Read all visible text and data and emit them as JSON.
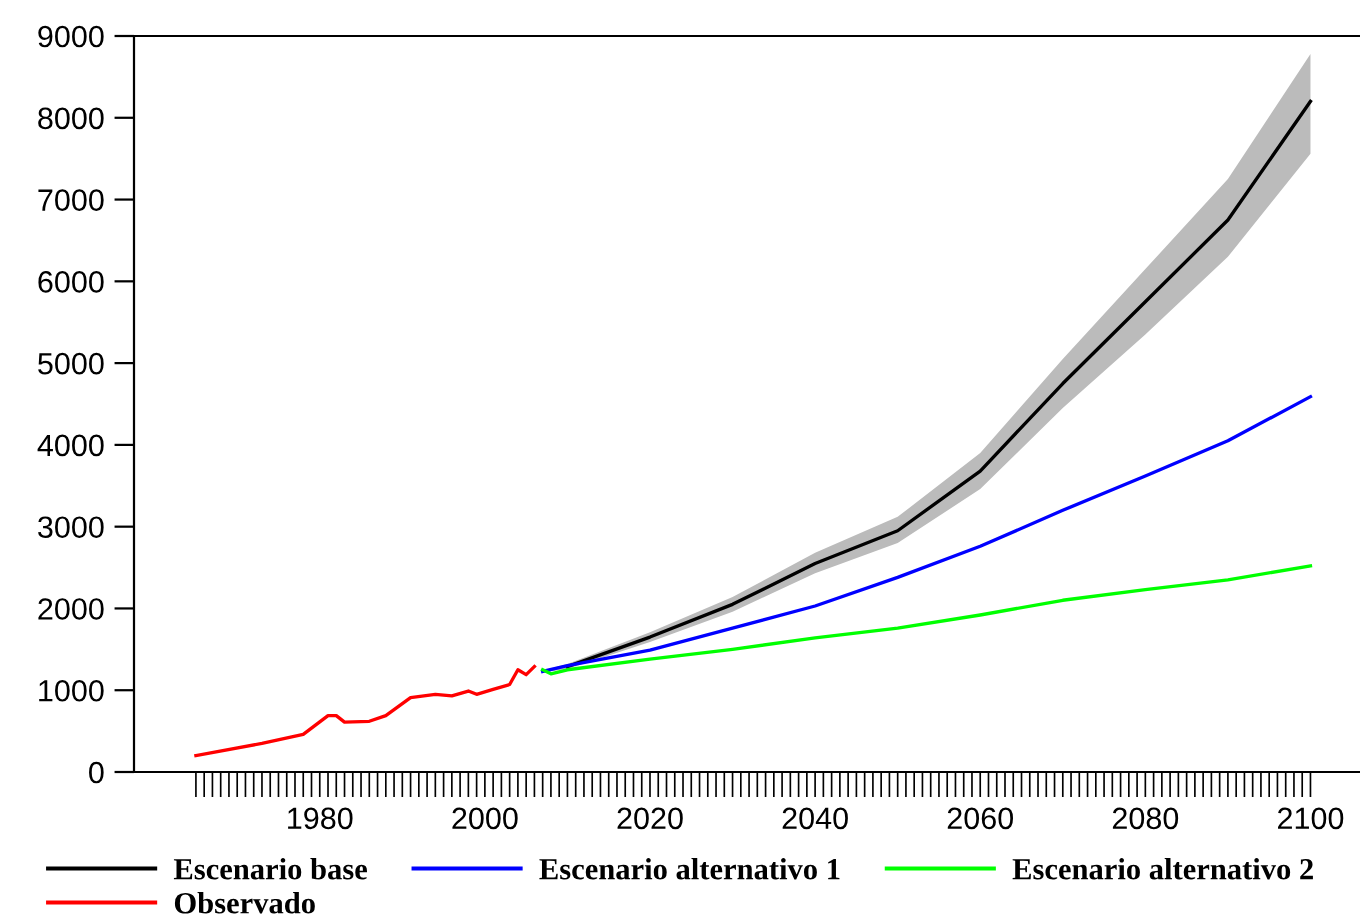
{
  "chart_data": {
    "type": "line",
    "series": [
      {
        "name": "Escenario base",
        "color": "#000000",
        "x": [
          2007,
          2010,
          2020,
          2030,
          2040,
          2050,
          2060,
          2070,
          2080,
          2090,
          2100
        ],
        "values": [
          null,
          1290,
          1650,
          2050,
          2550,
          2950,
          3680,
          4750,
          5750,
          6750,
          8200
        ],
        "lower": [
          1220,
          1260,
          1590,
          1960,
          2430,
          2800,
          3460,
          4450,
          5350,
          6300,
          7560
        ],
        "upper": [
          1240,
          1320,
          1710,
          2140,
          2680,
          3120,
          3900,
          5050,
          6150,
          7250,
          8780
        ]
      },
      {
        "name": "Escenario alternativo 1",
        "color": "#0000ff",
        "x": [
          2007,
          2010,
          2020,
          2030,
          2040,
          2050,
          2060,
          2070,
          2080,
          2090,
          2100
        ],
        "values": [
          1230,
          1300,
          1490,
          1760,
          2030,
          2380,
          2760,
          3200,
          3620,
          4050,
          4590
        ]
      },
      {
        "name": "Escenario alternativo 2",
        "color": "#00ff00",
        "x": [
          2007,
          2008,
          2010,
          2020,
          2030,
          2040,
          2050,
          2060,
          2070,
          2080,
          2090,
          2100
        ],
        "values": [
          1250,
          1200,
          1250,
          1380,
          1500,
          1640,
          1760,
          1920,
          2100,
          2230,
          2350,
          2520
        ]
      },
      {
        "name": "Observado",
        "color": "#ff0000",
        "x": [
          1965,
          1973,
          1978,
          1981,
          1982,
          1983,
          1986,
          1988,
          1991,
          1994,
          1996,
          1998,
          1999,
          2001,
          2003,
          2004,
          2005,
          2006
        ],
        "values": [
          200,
          350,
          460,
          690,
          690,
          610,
          620,
          690,
          910,
          950,
          930,
          990,
          950,
          1010,
          1070,
          1250,
          1190,
          1290
        ]
      }
    ],
    "xlim": [
      1957.5,
      2106
    ],
    "ylim": [
      0,
      9000
    ],
    "yticks": [
      0,
      1000,
      2000,
      3000,
      4000,
      5000,
      6000,
      7000,
      8000,
      9000
    ],
    "xticks": [
      {
        "value": 1965,
        "label": null
      },
      {
        "value": 1966,
        "label": null
      },
      {
        "value": 1967,
        "label": null
      },
      {
        "value": 1968,
        "label": null
      },
      {
        "value": 1969,
        "label": null
      },
      {
        "value": 1970,
        "label": null
      },
      {
        "value": 1971,
        "label": null
      },
      {
        "value": 1972,
        "label": null
      },
      {
        "value": 1973,
        "label": null
      },
      {
        "value": 1974,
        "label": null
      },
      {
        "value": 1975,
        "label": null
      },
      {
        "value": 1976,
        "label": null
      },
      {
        "value": 1977,
        "label": null
      },
      {
        "value": 1978,
        "label": null
      },
      {
        "value": 1979,
        "label": null
      },
      1980,
      {
        "value": 1981,
        "label": null
      },
      {
        "value": 1982,
        "label": null
      },
      {
        "value": 1983,
        "label": null
      },
      {
        "value": 1984,
        "label": null
      },
      {
        "value": 1985,
        "label": null
      },
      {
        "value": 1986,
        "label": null
      },
      {
        "value": 1987,
        "label": null
      },
      {
        "value": 1988,
        "label": null
      },
      {
        "value": 1989,
        "label": null
      },
      {
        "value": 1990,
        "label": null
      },
      {
        "value": 1991,
        "label": null
      },
      {
        "value": 1992,
        "label": null
      },
      {
        "value": 1993,
        "label": null
      },
      {
        "value": 1994,
        "label": null
      },
      {
        "value": 1995,
        "label": null
      },
      {
        "value": 1996,
        "label": null
      },
      {
        "value": 1997,
        "label": null
      },
      {
        "value": 1998,
        "label": null
      },
      {
        "value": 1999,
        "label": null
      },
      2000,
      {
        "value": 2001,
        "label": null
      },
      {
        "value": 2002,
        "label": null
      },
      {
        "value": 2003,
        "label": null
      },
      {
        "value": 2004,
        "label": null
      },
      {
        "value": 2005,
        "label": null
      },
      {
        "value": 2006,
        "label": null
      },
      {
        "value": 2007,
        "label": null
      },
      {
        "value": 2008,
        "label": null
      },
      {
        "value": 2009,
        "label": null
      },
      {
        "value": 2010,
        "label": null
      },
      {
        "value": 2011,
        "label": null
      },
      {
        "value": 2012,
        "label": null
      },
      {
        "value": 2013,
        "label": null
      },
      {
        "value": 2014,
        "label": null
      },
      {
        "value": 2015,
        "label": null
      },
      {
        "value": 2016,
        "label": null
      },
      {
        "value": 2017,
        "label": null
      },
      {
        "value": 2018,
        "label": null
      },
      {
        "value": 2019,
        "label": null
      },
      2020,
      {
        "value": 2021,
        "label": null
      },
      {
        "value": 2022,
        "label": null
      },
      {
        "value": 2023,
        "label": null
      },
      {
        "value": 2024,
        "label": null
      },
      {
        "value": 2025,
        "label": null
      },
      {
        "value": 2026,
        "label": null
      },
      {
        "value": 2027,
        "label": null
      },
      {
        "value": 2028,
        "label": null
      },
      {
        "value": 2029,
        "label": null
      },
      {
        "value": 2030,
        "label": null
      },
      {
        "value": 2031,
        "label": null
      },
      {
        "value": 2032,
        "label": null
      },
      {
        "value": 2033,
        "label": null
      },
      {
        "value": 2034,
        "label": null
      },
      {
        "value": 2035,
        "label": null
      },
      {
        "value": 2036,
        "label": null
      },
      {
        "value": 2037,
        "label": null
      },
      {
        "value": 2038,
        "label": null
      },
      {
        "value": 2039,
        "label": null
      },
      2040,
      {
        "value": 2041,
        "label": null
      },
      {
        "value": 2042,
        "label": null
      },
      {
        "value": 2043,
        "label": null
      },
      {
        "value": 2044,
        "label": null
      },
      {
        "value": 2045,
        "label": null
      },
      {
        "value": 2046,
        "label": null
      },
      {
        "value": 2047,
        "label": null
      },
      {
        "value": 2048,
        "label": null
      },
      {
        "value": 2049,
        "label": null
      },
      {
        "value": 2050,
        "label": null
      },
      {
        "value": 2051,
        "label": null
      },
      {
        "value": 2052,
        "label": null
      },
      {
        "value": 2053,
        "label": null
      },
      {
        "value": 2054,
        "label": null
      },
      {
        "value": 2055,
        "label": null
      },
      {
        "value": 2056,
        "label": null
      },
      {
        "value": 2057,
        "label": null
      },
      {
        "value": 2058,
        "label": null
      },
      {
        "value": 2059,
        "label": null
      },
      2060,
      {
        "value": 2061,
        "label": null
      },
      {
        "value": 2062,
        "label": null
      },
      {
        "value": 2063,
        "label": null
      },
      {
        "value": 2064,
        "label": null
      },
      {
        "value": 2065,
        "label": null
      },
      {
        "value": 2066,
        "label": null
      },
      {
        "value": 2067,
        "label": null
      },
      {
        "value": 2068,
        "label": null
      },
      {
        "value": 2069,
        "label": null
      },
      {
        "value": 2070,
        "label": null
      },
      {
        "value": 2071,
        "label": null
      },
      {
        "value": 2072,
        "label": null
      },
      {
        "value": 2073,
        "label": null
      },
      {
        "value": 2074,
        "label": null
      },
      {
        "value": 2075,
        "label": null
      },
      {
        "value": 2076,
        "label": null
      },
      {
        "value": 2077,
        "label": null
      },
      {
        "value": 2078,
        "label": null
      },
      {
        "value": 2079,
        "label": null
      },
      2080,
      {
        "value": 2081,
        "label": null
      },
      {
        "value": 2082,
        "label": null
      },
      {
        "value": 2083,
        "label": null
      },
      {
        "value": 2084,
        "label": null
      },
      {
        "value": 2085,
        "label": null
      },
      {
        "value": 2086,
        "label": null
      },
      {
        "value": 2087,
        "label": null
      },
      {
        "value": 2088,
        "label": null
      },
      {
        "value": 2089,
        "label": null
      },
      {
        "value": 2090,
        "label": null
      },
      {
        "value": 2091,
        "label": null
      },
      {
        "value": 2092,
        "label": null
      },
      {
        "value": 2093,
        "label": null
      },
      {
        "value": 2094,
        "label": null
      },
      {
        "value": 2095,
        "label": null
      },
      {
        "value": 2096,
        "label": null
      },
      {
        "value": 2097,
        "label": null
      },
      {
        "value": 2098,
        "label": null
      },
      {
        "value": 2099,
        "label": null
      },
      2100
    ],
    "legend": "bottom",
    "grid": false,
    "marker": "none",
    "line_style": "solid"
  }
}
